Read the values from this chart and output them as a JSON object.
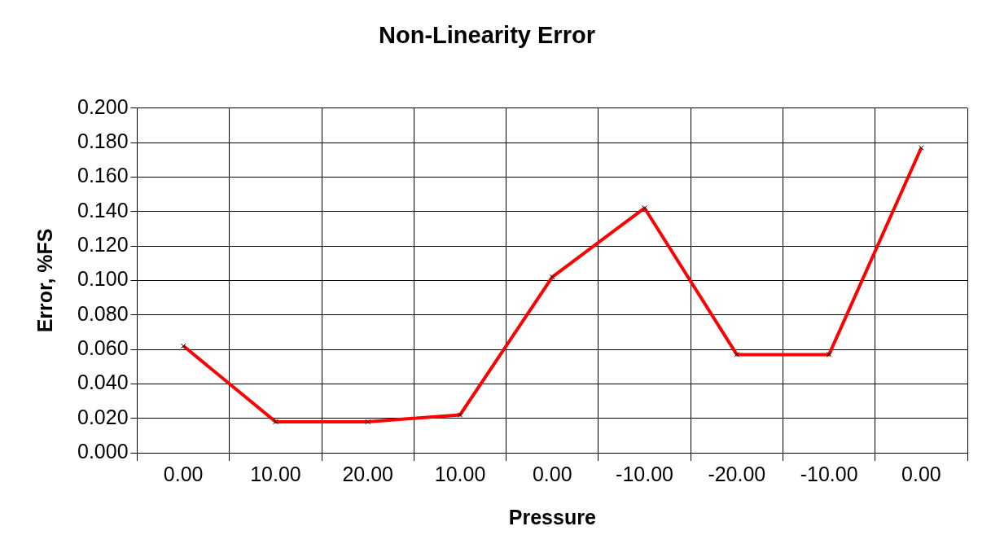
{
  "chart_data": {
    "type": "line",
    "title": "Non-Linearity Error",
    "xlabel": "Pressure",
    "ylabel": "Error, %FS",
    "categories": [
      "0.00",
      "10.00",
      "20.00",
      "10.00",
      "0.00",
      "-10.00",
      "-20.00",
      "-10.00",
      "0.00"
    ],
    "series": [
      {
        "color": "#ff0000",
        "values": [
          0.062,
          0.018,
          0.018,
          0.022,
          0.102,
          0.142,
          0.057,
          0.057,
          0.177
        ]
      }
    ],
    "ylim": [
      0,
      0.2
    ],
    "yticks": [
      {
        "value": 0,
        "label": "0.000"
      },
      {
        "value": 0.02,
        "label": "0.020"
      },
      {
        "value": 0.04,
        "label": "0.040"
      },
      {
        "value": 0.06,
        "label": "0.060"
      },
      {
        "value": 0.08,
        "label": "0.080"
      },
      {
        "value": 0.1,
        "label": "0.100"
      },
      {
        "value": 0.12,
        "label": "0.120"
      },
      {
        "value": 0.14,
        "label": "0.140"
      },
      {
        "value": 0.16,
        "label": "0.160"
      },
      {
        "value": 0.18,
        "label": "0.180"
      },
      {
        "value": 0.2,
        "label": "0.200"
      }
    ],
    "grid": true,
    "legend": false,
    "marker": "cross",
    "line_style": "solid"
  }
}
